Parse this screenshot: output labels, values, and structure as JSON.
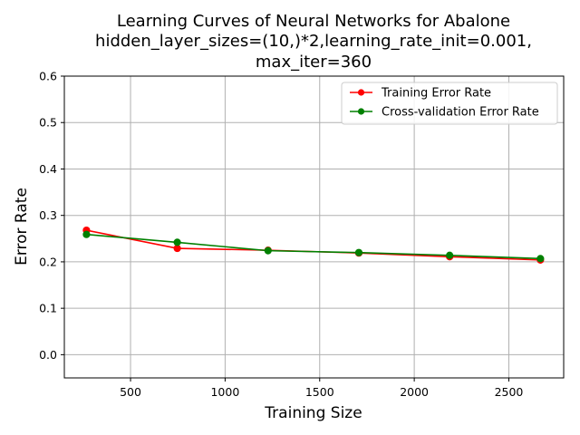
{
  "chart_data": {
    "type": "line",
    "title": [
      "Learning Curves of Neural Networks for Abalone",
      "hidden_layer_sizes=(10,)*2,learning_rate_init=0.001,",
      "max_iter=360"
    ],
    "xlabel": "Training Size",
    "ylabel": "Error Rate",
    "xlim": [
      150,
      2790
    ],
    "ylim": [
      -0.05,
      0.6
    ],
    "xticks": [
      500,
      1000,
      1500,
      2000,
      2500
    ],
    "yticks": [
      0.0,
      0.1,
      0.2,
      0.3,
      0.4,
      0.5,
      0.6
    ],
    "grid": true,
    "legend_position": "top-right",
    "x": [
      267,
      747,
      1227,
      1707,
      2187,
      2667
    ],
    "series": [
      {
        "name": "Training Error Rate",
        "color": "#ff0000",
        "values": [
          0.268,
          0.229,
          0.225,
          0.219,
          0.211,
          0.204
        ]
      },
      {
        "name": "Cross-validation Error Rate",
        "color": "#008000",
        "values": [
          0.259,
          0.242,
          0.224,
          0.22,
          0.214,
          0.207
        ]
      }
    ]
  }
}
